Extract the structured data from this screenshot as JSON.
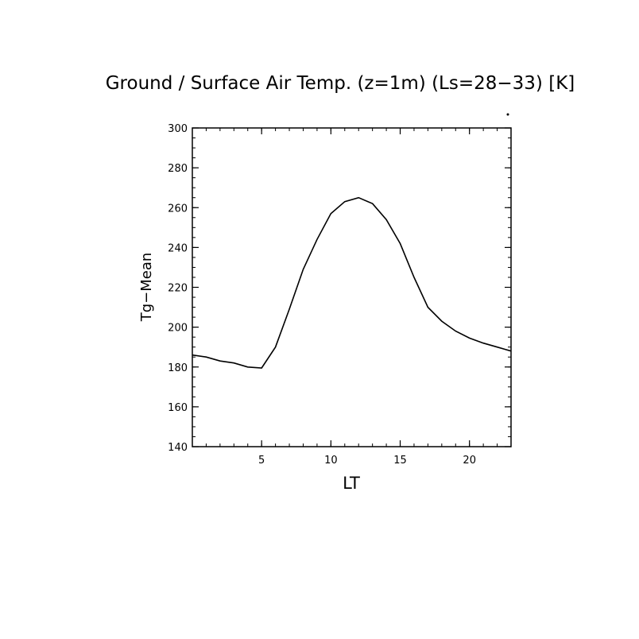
{
  "chart_data": {
    "type": "line",
    "title": "Ground / Surface Air Temp. (z=1m) (Ls=28−33) [K]",
    "xlabel": "LT",
    "ylabel": "Tg−Mean",
    "xlim": [
      0,
      23
    ],
    "ylim": [
      140,
      300
    ],
    "xticks": [
      5,
      10,
      15,
      20
    ],
    "yticks": [
      140,
      160,
      180,
      200,
      220,
      240,
      260,
      280,
      300
    ],
    "x": [
      0,
      1,
      2,
      3,
      4,
      5,
      6,
      7,
      8,
      9,
      10,
      11,
      12,
      13,
      14,
      15,
      16,
      17,
      18,
      19,
      20,
      21,
      22,
      23
    ],
    "series": [
      {
        "values": [
          186,
          185,
          183,
          182,
          180,
          179.5,
          190,
          209,
          229,
          244,
          257,
          263,
          265,
          262,
          254,
          242,
          225,
          210,
          203,
          198,
          194.5,
          192,
          190,
          188
        ]
      }
    ],
    "grid": false,
    "line_color": "#000000"
  }
}
